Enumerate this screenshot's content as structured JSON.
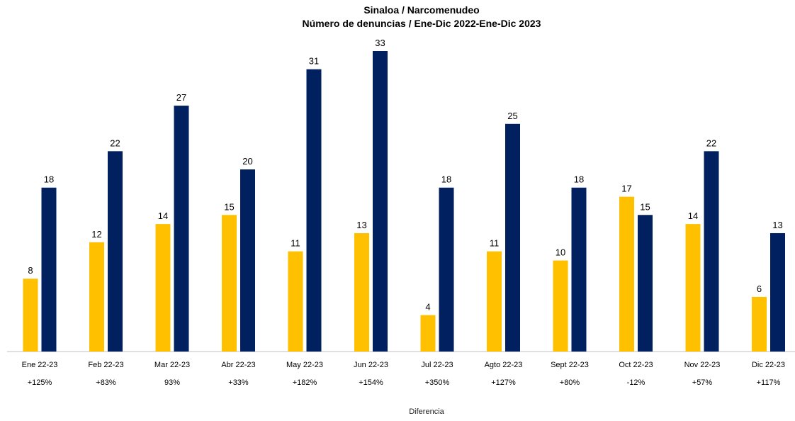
{
  "chart_data": {
    "type": "bar",
    "title": "Sinaloa / Narcomenudeo",
    "subtitle": "Número de denuncias / Ene-Dic 2022-Ene-Dic 2023",
    "xlabel": "Diferencia",
    "ylabel": "",
    "ylim": [
      0,
      33
    ],
    "grid": false,
    "categories": [
      "Ene 22-23",
      "Feb 22-23",
      "Mar 22-23",
      "Abr 22-23",
      "May 22-23",
      "Jun 22-23",
      "Jul 22-23",
      "Agto 22-23",
      "Sept 22-23",
      "Oct 22-23",
      "Nov 22-23",
      "Dic 22-23"
    ],
    "differences": [
      "+125%",
      "+83%",
      "93%",
      "+33%",
      "+182%",
      "+154%",
      "+350%",
      "+127%",
      "+80%",
      "-12%",
      "+57%",
      "+117%"
    ],
    "series": [
      {
        "values": [
          8,
          12,
          14,
          15,
          11,
          13,
          4,
          11,
          10,
          17,
          14,
          6
        ],
        "color": "#FFC000"
      },
      {
        "values": [
          18,
          22,
          27,
          20,
          31,
          33,
          18,
          25,
          18,
          15,
          22,
          13
        ],
        "color": "#002060"
      }
    ]
  }
}
